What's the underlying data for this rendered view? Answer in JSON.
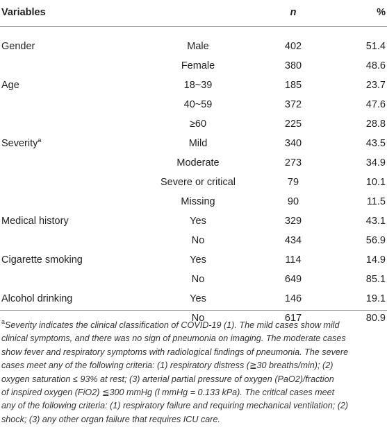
{
  "table": {
    "header": [
      "Variables",
      "n",
      "%"
    ],
    "rows": [
      {
        "variable": "Gender",
        "level": "Male",
        "n": 402,
        "pct": 51.4
      },
      {
        "level": "Female",
        "n": 380,
        "pct": 48.6
      },
      {
        "variable": "Age",
        "level": "18~39",
        "n": 185,
        "pct": 23.7
      },
      {
        "level": "40~59",
        "n": 372,
        "pct": 47.6
      },
      {
        "level": "≥60",
        "n": 225,
        "pct": 28.8
      },
      {
        "variable": "Severity",
        "note": "a",
        "level": "Mild",
        "n": 340,
        "pct": 43.5
      },
      {
        "level": "Moderate",
        "n": 273,
        "pct": 34.9
      },
      {
        "level": "Severe or critical",
        "n": 79,
        "pct": 10.1
      },
      {
        "level": "Missing",
        "n": 90,
        "pct": 11.5
      },
      {
        "variable": "Medical history",
        "level": "Yes",
        "n": 329,
        "pct": 43.1
      },
      {
        "level": "No",
        "n": 434,
        "pct": 56.9
      },
      {
        "variable": "Cigarette smoking",
        "level": "Yes",
        "n": 114,
        "pct": 14.9
      },
      {
        "level": "No",
        "n": 649,
        "pct": 85.1
      },
      {
        "variable": "Alcohol drinking",
        "level": "Yes",
        "n": 146,
        "pct": 19.1
      },
      {
        "level": "No",
        "n": 617,
        "pct": 80.9
      }
    ]
  },
  "footnote": {
    "mark": "a",
    "lines": [
      "Severity indicates the clinical classification of COVID-19 (1). The mild cases show mild",
      "clinical symptoms, and there was no sign of pneumonia on imaging. The moderate cases",
      "show fever and respiratory symptoms with radiological findings of pneumonia. The severe",
      "cases meet any of the following criteria: (1) respiratory distress (≧30 breaths/min); (2)",
      "oxygen saturation ≤ 93% at rest; (3) arterial partial pressure of oxygen (PaO2)/fraction",
      "of inspired oxygen (FiO2) ≦300 mmHg (l mmHg = 0.133 kPa). The critical cases meet",
      "any of the following criteria: (1) respiratory failure and requiring mechanical ventilation; (2)",
      "shock; (3) any other organ failure that requires ICU care."
    ]
  }
}
